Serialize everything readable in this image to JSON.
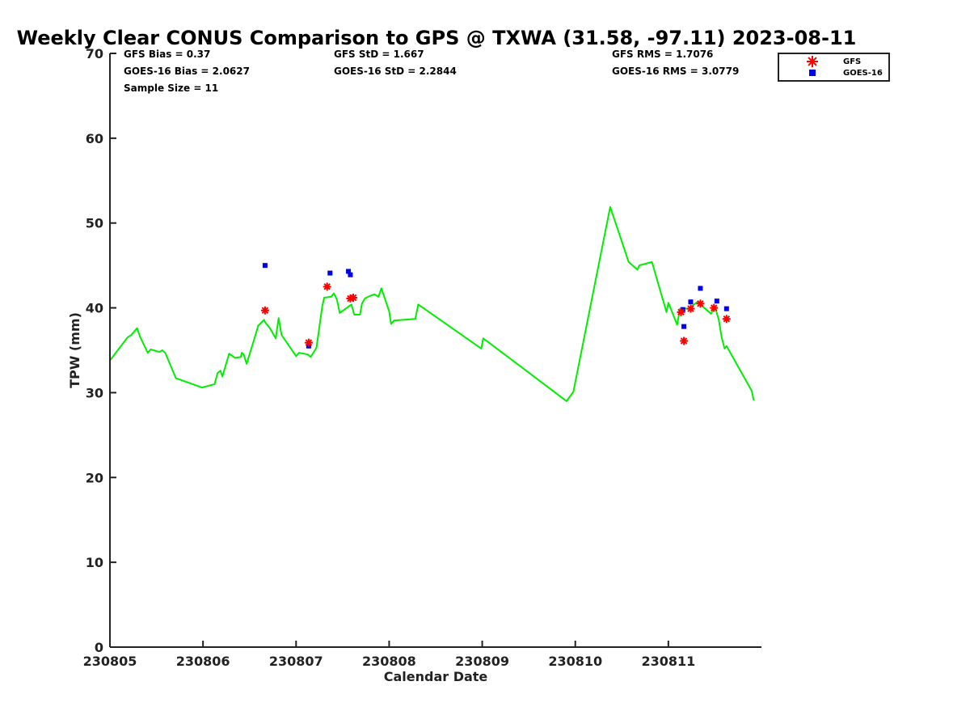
{
  "chart_data": {
    "type": "line",
    "title": "Weekly Clear CONUS Comparison to GPS @ TXWA (31.58, -97.11) 2023-08-11",
    "xlabel": "Calendar Date",
    "ylabel": "TPW (mm)",
    "xlim": [
      "230805",
      "230812"
    ],
    "ylim": [
      0,
      70
    ],
    "x_ticks": [
      "230805",
      "230806",
      "230807",
      "230808",
      "230809",
      "230810",
      "230811"
    ],
    "y_ticks": [
      0,
      10,
      20,
      30,
      40,
      50,
      60,
      70
    ],
    "grid": false,
    "legend": "top-right",
    "stats": {
      "gfs_bias": "GFS Bias = 0.37",
      "goes_bias": "GOES-16 Bias = 2.0627",
      "sample_size": "Sample Size = 11",
      "gfs_std": "GFS StD = 1.667",
      "goes_std": "GOES-16 StD = 2.2844",
      "gfs_rms": "GFS RMS = 1.7076",
      "goes_rms": "GOES-16 RMS = 3.0779"
    },
    "colors": {
      "gps": "#00ee00",
      "gfs": "#ff0000",
      "goes": "#0000ee"
    },
    "series": [
      {
        "style": "line",
        "color": "#00ee00",
        "points": [
          [
            "230805 00:00",
            33.8
          ],
          [
            "230805 04:30",
            36.5
          ],
          [
            "230805 05:30",
            36.8
          ],
          [
            "230805 07:00",
            37.6
          ],
          [
            "230805 07:45",
            36.6
          ],
          [
            "230805 09:45",
            34.7
          ],
          [
            "230805 10:30",
            35.1
          ],
          [
            "230805 12:45",
            34.8
          ],
          [
            "230805 13:30",
            35.0
          ],
          [
            "230805 14:15",
            34.7
          ],
          [
            "230805 17:00",
            31.7
          ],
          [
            "230805 23:45",
            30.6
          ],
          [
            "230806 03:00",
            31.0
          ],
          [
            "230806 03:45",
            32.3
          ],
          [
            "230806 04:30",
            32.6
          ],
          [
            "230806 05:00",
            31.9
          ],
          [
            "230806 06:45",
            34.6
          ],
          [
            "230806 08:15",
            34.1
          ],
          [
            "230806 09:45",
            34.2
          ],
          [
            "230806 10:00",
            34.7
          ],
          [
            "230806 10:30",
            34.5
          ],
          [
            "230806 11:15",
            33.4
          ],
          [
            "230806 13:00",
            36.0
          ],
          [
            "230806 14:15",
            37.9
          ],
          [
            "230806 15:45",
            38.6
          ],
          [
            "230806 16:00",
            38.3
          ],
          [
            "230806 17:15",
            37.6
          ],
          [
            "230806 18:45",
            36.4
          ],
          [
            "230806 19:30",
            38.8
          ],
          [
            "230806 20:15",
            36.8
          ],
          [
            "230807 00:00",
            34.3
          ],
          [
            "230807 00:45",
            34.7
          ],
          [
            "230807 03:00",
            34.5
          ],
          [
            "230807 03:45",
            34.2
          ],
          [
            "230807 05:15",
            35.3
          ],
          [
            "230807 06:45",
            40.2
          ],
          [
            "230807 07:15",
            41.2
          ],
          [
            "230807 09:00",
            41.3
          ],
          [
            "230807 09:45",
            41.7
          ],
          [
            "230807 10:30",
            41.0
          ],
          [
            "230807 11:15",
            39.4
          ],
          [
            "230807 14:15",
            40.4
          ],
          [
            "230807 15:00",
            39.2
          ],
          [
            "230807 16:30",
            39.2
          ],
          [
            "230807 17:00",
            40.5
          ],
          [
            "230807 17:45",
            41.1
          ],
          [
            "230807 19:00",
            41.4
          ],
          [
            "230807 20:15",
            41.6
          ],
          [
            "230807 21:15",
            41.3
          ],
          [
            "230807 22:00",
            42.3
          ],
          [
            "230808 00:00",
            39.6
          ],
          [
            "230808 00:30",
            38.1
          ],
          [
            "230808 01:15",
            38.5
          ],
          [
            "230808 06:45",
            38.7
          ],
          [
            "230808 07:30",
            40.4
          ],
          [
            "230808 23:45",
            35.2
          ],
          [
            "230809 00:15",
            36.4
          ],
          [
            "230809 21:45",
            29.0
          ],
          [
            "230809 23:30",
            30.1
          ],
          [
            "230810 09:00",
            51.9
          ],
          [
            "230810 13:45",
            45.4
          ],
          [
            "230810 16:00",
            44.5
          ],
          [
            "230810 16:30",
            45.0
          ],
          [
            "230810 19:45",
            45.4
          ],
          [
            "230810 23:30",
            39.5
          ],
          [
            "230811 00:00",
            40.6
          ],
          [
            "230811 02:15",
            38.0
          ],
          [
            "230811 03:00",
            39.9
          ],
          [
            "230811 05:15",
            39.9
          ],
          [
            "230811 07:30",
            40.7
          ],
          [
            "230811 11:00",
            39.3
          ],
          [
            "230811 12:00",
            40.2
          ],
          [
            "230811 13:00",
            38.6
          ],
          [
            "230811 13:45",
            36.5
          ],
          [
            "230811 14:30",
            35.2
          ],
          [
            "230811 15:00",
            35.5
          ],
          [
            "230811 21:30",
            30.2
          ],
          [
            "230811 22:00",
            29.1
          ]
        ]
      },
      {
        "name": "GFS",
        "style": "star",
        "color": "#ff0000",
        "points": [
          [
            "230806 16:00",
            39.7
          ],
          [
            "230807 03:15",
            35.9
          ],
          [
            "230807 08:00",
            42.5
          ],
          [
            "230807 14:00",
            41.1
          ],
          [
            "230807 14:45",
            41.2
          ],
          [
            "230811 03:15",
            39.5
          ],
          [
            "230811 04:00",
            36.1
          ],
          [
            "230811 05:45",
            39.9
          ],
          [
            "230811 08:15",
            40.5
          ],
          [
            "230811 11:45",
            40.0
          ],
          [
            "230811 15:00",
            38.7
          ]
        ]
      },
      {
        "name": "GOES-16",
        "style": "square",
        "color": "#0000ee",
        "points": [
          [
            "230806 16:00",
            45.0
          ],
          [
            "230807 03:15",
            35.5
          ],
          [
            "230807 08:45",
            44.1
          ],
          [
            "230807 13:30",
            44.3
          ],
          [
            "230807 14:00",
            43.9
          ],
          [
            "230811 03:45",
            39.8
          ],
          [
            "230811 04:00",
            37.8
          ],
          [
            "230811 05:45",
            40.7
          ],
          [
            "230811 08:15",
            42.3
          ],
          [
            "230811 12:30",
            40.8
          ],
          [
            "230811 15:00",
            39.9
          ]
        ]
      }
    ]
  }
}
